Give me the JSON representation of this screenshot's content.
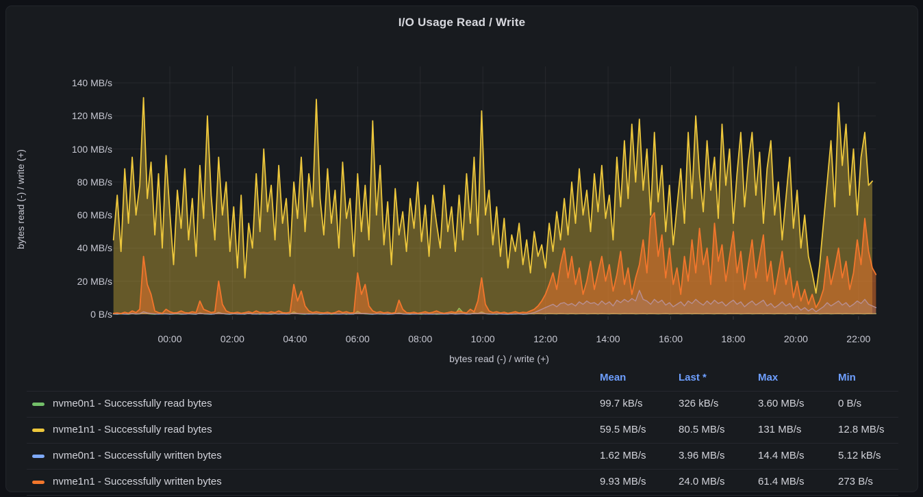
{
  "panel": {
    "title": "I/O Usage Read / Write"
  },
  "colors": {
    "page_background": "#0f1116",
    "panel_background": "#181b1f",
    "grid": "rgba(204,204,220,0.08)",
    "tick_text": "#c8c9d3",
    "legend_text": "#d2d3da",
    "legend_header_link": "#6e9fff",
    "series_green": "#73BF69",
    "series_yellow": "#EDC73C",
    "series_blue": "#7EA9F8",
    "series_orange": "#F2762C"
  },
  "chart_data": {
    "type": "area",
    "title": "I/O Usage Read / Write",
    "xlabel": "bytes read (-) / write (+)",
    "ylabel": "bytes read (-) / write (+)",
    "grid": true,
    "legend_position": "bottom-table",
    "unit": "MB/s",
    "ylim": [
      0,
      150
    ],
    "x_start_hours": -1.8,
    "x_step_hours": 0.12,
    "x_ticks": [
      {
        "hour": 0,
        "label": "00:00"
      },
      {
        "hour": 2,
        "label": "02:00"
      },
      {
        "hour": 4,
        "label": "04:00"
      },
      {
        "hour": 6,
        "label": "06:00"
      },
      {
        "hour": 8,
        "label": "08:00"
      },
      {
        "hour": 10,
        "label": "10:00"
      },
      {
        "hour": 12,
        "label": "12:00"
      },
      {
        "hour": 14,
        "label": "14:00"
      },
      {
        "hour": 16,
        "label": "16:00"
      },
      {
        "hour": 18,
        "label": "18:00"
      },
      {
        "hour": 20,
        "label": "20:00"
      },
      {
        "hour": 22,
        "label": "22:00"
      }
    ],
    "y_ticks": [
      {
        "value": 0,
        "label": "0 B/s"
      },
      {
        "value": 20,
        "label": "20 MB/s"
      },
      {
        "value": 40,
        "label": "40 MB/s"
      },
      {
        "value": 60,
        "label": "60 MB/s"
      },
      {
        "value": 80,
        "label": "80 MB/s"
      },
      {
        "value": 100,
        "label": "100 MB/s"
      },
      {
        "value": 120,
        "label": "120 MB/s"
      },
      {
        "value": 140,
        "label": "140 MB/s"
      }
    ],
    "series": [
      {
        "key": "nvme0n1-read",
        "name": "nvme0n1 - Successfully read bytes",
        "color": "#73BF69",
        "fill_opacity": 0.3,
        "line_width": 1.4,
        "values": [
          0.1,
          0,
          0.2,
          0.1,
          0,
          0.3,
          0.1,
          0.2,
          0.5,
          0.3,
          0.1,
          0,
          0.2,
          0.1,
          0.3,
          0,
          0.1,
          0.2,
          0,
          0.1,
          0.3,
          0.1,
          0,
          0.8,
          0.2,
          0.1,
          0,
          0.3,
          1.2,
          0.4,
          0.1,
          0,
          0.3,
          0.1,
          0.2,
          0,
          0.5,
          0.1,
          0.3,
          0,
          0.2,
          0.1,
          0,
          0.3,
          0.1,
          0.6,
          0.2,
          0.1,
          1.5,
          0.3,
          0.1,
          0,
          0.4,
          0.1,
          0.2,
          0,
          0.1,
          0.3,
          0,
          0.2,
          0.1,
          0.3,
          0,
          0.2,
          0.1,
          1.8,
          0.4,
          0.2,
          0.1,
          0,
          0.3,
          0.1,
          0.2,
          0,
          0.1,
          0.3,
          0.8,
          0.2,
          0.1,
          0,
          0.2,
          0.1,
          0,
          0.3,
          0.1,
          0.2,
          0,
          0.1,
          0.3,
          0.1,
          0.5,
          0.2,
          3.6,
          1.2,
          0.3,
          0.1,
          0.8,
          0.4,
          1.5,
          0.3,
          0.1,
          0.2,
          0,
          0.3,
          0.1,
          0,
          0.2,
          0.1,
          0.3,
          0,
          0.1,
          0.3,
          0.2,
          0.5,
          0.3,
          0.2,
          0.4,
          0.3,
          0.2,
          0.5,
          0.3,
          0.2,
          0.4,
          0.2,
          0.3,
          0.5,
          0.2,
          0.3,
          0.4,
          0.2,
          0.5,
          0.3,
          0.2,
          0.4,
          0.3,
          0.2,
          0.5,
          0.3,
          0.4,
          0.2,
          0.3,
          0.5,
          0.2,
          0.4,
          0.3,
          0.2,
          0.3,
          0.5,
          0.2,
          0.3,
          0.4,
          0.2,
          0.3,
          0.5,
          0.2,
          0.4,
          0.3,
          0.2,
          0.5,
          0.3,
          0.2,
          0.4,
          0.3,
          0.2,
          0.5,
          0.3,
          0.4,
          0.2,
          0.3,
          0.5,
          0.2,
          0.3,
          0.4,
          0.2,
          0.5,
          0.3,
          0.2,
          0.4,
          0.3,
          0.2,
          0.5,
          0.3,
          0.2,
          0.4,
          0.3,
          0.2,
          0.3,
          0.5,
          0.2,
          0.3,
          0.4,
          0.2,
          0.3,
          0.5,
          0.2,
          0.4,
          0.3,
          0.2,
          0.5,
          0.3,
          0.2,
          0.4,
          0.3,
          0.326
        ]
      },
      {
        "key": "nvme1n1-read",
        "name": "nvme1n1 - Successfully read bytes",
        "color": "#EDC73C",
        "fill_opacity": 0.36,
        "line_width": 1.8,
        "values": [
          45,
          72,
          38,
          88,
          55,
          95,
          60,
          78,
          131,
          70,
          92,
          48,
          85,
          40,
          96,
          62,
          30,
          75,
          52,
          88,
          45,
          70,
          35,
          90,
          58,
          120,
          72,
          45,
          95,
          60,
          80,
          38,
          65,
          28,
          72,
          22,
          55,
          40,
          85,
          50,
          100,
          62,
          78,
          45,
          90,
          55,
          70,
          35,
          80,
          58,
          95,
          50,
          85,
          65,
          130,
          70,
          48,
          88,
          55,
          75,
          40,
          92,
          58,
          70,
          35,
          85,
          50,
          78,
          45,
          117,
          60,
          90,
          42,
          68,
          30,
          76,
          48,
          62,
          38,
          70,
          52,
          80,
          44,
          66,
          35,
          72,
          55,
          40,
          78,
          50,
          65,
          38,
          72,
          45,
          85,
          55,
          95,
          48,
          123,
          60,
          75,
          42,
          65,
          35,
          58,
          28,
          48,
          38,
          55,
          30,
          45,
          25,
          50,
          35,
          42,
          28,
          55,
          38,
          62,
          45,
          70,
          48,
          80,
          55,
          88,
          60,
          75,
          50,
          85,
          62,
          90,
          58,
          72,
          45,
          95,
          65,
          105,
          70,
          115,
          80,
          118,
          75,
          100,
          60,
          110,
          68,
          90,
          50,
          78,
          42,
          65,
          88,
          55,
          110,
          70,
          120,
          85,
          62,
          105,
          75,
          95,
          58,
          115,
          78,
          100,
          55,
          85,
          110,
          65,
          92,
          110,
          72,
          98,
          55,
          88,
          105,
          60,
          80,
          45,
          70,
          95,
          52,
          75,
          40,
          60,
          35,
          25,
          12.8,
          30,
          55,
          80,
          105,
          65,
          128,
          90,
          115,
          72,
          100,
          60,
          95,
          110,
          78,
          80.5
        ]
      },
      {
        "key": "nvme0n1-write",
        "name": "nvme0n1 - Successfully written bytes",
        "color": "#7EA9F8",
        "fill_opacity": 0.25,
        "line_width": 1.4,
        "values": [
          0.2,
          0.1,
          0.3,
          0.1,
          0.2,
          0.4,
          0.2,
          0.3,
          1.5,
          0.8,
          0.4,
          0.2,
          0.1,
          0.3,
          0.2,
          0.1,
          0.2,
          0.4,
          0.2,
          0.1,
          0.3,
          0.2,
          0.1,
          0.5,
          0.3,
          0.2,
          0.1,
          0.2,
          0.8,
          0.4,
          0.2,
          0.1,
          0.3,
          0.2,
          0.1,
          0.2,
          0.4,
          0.2,
          0.1,
          0.3,
          0.2,
          0.1,
          0.2,
          0.3,
          0.1,
          0.2,
          0.1,
          0.3,
          0.6,
          0.4,
          0.3,
          0.2,
          0.1,
          0.2,
          0.3,
          0.1,
          0.2,
          0.1,
          0.3,
          0.2,
          0.1,
          0.2,
          0.3,
          0.1,
          0.2,
          0.7,
          0.4,
          0.5,
          0.2,
          0.1,
          0.2,
          0.3,
          0.1,
          0.2,
          0.1,
          0.3,
          0.4,
          0.2,
          0.1,
          0.2,
          0.1,
          0.2,
          0.3,
          0.1,
          0.2,
          0.1,
          0.3,
          0.2,
          0.1,
          0.2,
          0.3,
          0.1,
          0.2,
          0.3,
          0.1,
          0.2,
          0.4,
          0.5,
          0.8,
          0.3,
          0.2,
          0.1,
          0.3,
          0.2,
          0.1,
          0.2,
          0.1,
          0.3,
          0.2,
          0.1,
          0.2,
          0.5,
          1,
          2,
          3,
          4,
          5,
          6,
          4.5,
          6.5,
          7,
          5.5,
          6.5,
          5,
          7.5,
          6,
          8,
          6.5,
          7,
          5.5,
          8,
          6,
          7.5,
          5,
          8.5,
          7,
          9,
          7.5,
          9.5,
          8,
          14.4,
          9,
          8,
          6,
          9,
          7,
          8.5,
          5.5,
          7,
          4.5,
          6,
          7.5,
          5,
          8,
          6.5,
          9,
          7,
          5.5,
          8,
          6,
          8.5,
          6.5,
          7.5,
          5,
          7,
          8.5,
          6,
          7.5,
          4.5,
          6.5,
          8,
          5.5,
          7,
          8.5,
          5,
          6.5,
          4,
          5.5,
          7.5,
          5,
          6.5,
          3.5,
          5,
          2.5,
          4,
          2,
          3.5,
          1.5,
          3,
          4.5,
          7,
          5,
          6.5,
          8,
          5.5,
          7,
          4.5,
          6,
          8,
          6.5,
          9,
          6,
          5,
          3.96
        ]
      },
      {
        "key": "nvme1n1-write",
        "name": "nvme1n1 - Successfully written bytes",
        "color": "#F2762C",
        "fill_opacity": 0.5,
        "line_width": 1.8,
        "values": [
          0.5,
          0.8,
          0.4,
          1.2,
          0.6,
          2,
          1,
          3,
          35,
          18,
          12,
          2,
          1,
          0.6,
          3,
          1.5,
          0.8,
          1,
          2,
          1,
          0.8,
          1.5,
          1,
          8,
          3,
          2,
          1,
          1.5,
          20,
          6,
          2,
          1,
          0.8,
          1.2,
          0.6,
          1,
          1.5,
          0.8,
          2,
          1,
          1.2,
          0.8,
          1.5,
          1,
          2,
          1,
          0.8,
          1.2,
          18,
          8,
          14,
          5,
          2,
          1,
          1.5,
          1,
          0.8,
          1.2,
          0.6,
          1,
          2,
          1,
          1.5,
          0.8,
          1,
          25,
          12,
          18,
          5,
          2,
          1,
          1.5,
          0.8,
          1.2,
          0.6,
          1,
          8.5,
          3,
          1,
          0.8,
          1.2,
          0.6,
          1,
          1.5,
          0.8,
          1.2,
          2,
          1,
          0.6,
          1,
          1.5,
          1,
          2,
          1.2,
          0.8,
          3,
          1.5,
          8,
          22,
          6,
          2,
          1,
          1.5,
          0.8,
          1.2,
          0.6,
          1,
          1.5,
          0.8,
          1.2,
          1,
          2,
          3,
          5,
          8,
          12,
          18,
          25,
          15,
          30,
          40,
          22,
          35,
          18,
          28,
          12,
          20,
          32,
          15,
          25,
          35,
          20,
          30,
          14,
          24,
          38,
          18,
          28,
          12,
          22,
          30,
          45,
          25,
          58,
          61.4,
          35,
          48,
          22,
          40,
          18,
          28,
          12,
          35,
          20,
          45,
          25,
          52,
          30,
          40,
          18,
          55,
          32,
          42,
          20,
          35,
          50,
          25,
          38,
          15,
          30,
          45,
          22,
          35,
          48,
          20,
          32,
          12,
          25,
          38,
          18,
          28,
          10,
          20,
          8,
          15,
          6,
          12,
          4,
          8,
          15,
          35,
          18,
          28,
          40,
          22,
          32,
          15,
          25,
          45,
          30,
          58,
          38,
          28,
          24
        ]
      }
    ]
  },
  "legend": {
    "headers": [
      {
        "key": "mean",
        "label": "Mean"
      },
      {
        "key": "last",
        "label": "Last *"
      },
      {
        "key": "max",
        "label": "Max"
      },
      {
        "key": "min",
        "label": "Min"
      }
    ],
    "rows": [
      {
        "key": "nvme0n1-read",
        "label": "nvme0n1 - Successfully read bytes",
        "color": "#73BF69",
        "mean": "99.7 kB/s",
        "last": "326 kB/s",
        "max": "3.60 MB/s",
        "min": "0 B/s"
      },
      {
        "key": "nvme1n1-read",
        "label": "nvme1n1 - Successfully read bytes",
        "color": "#EDC73C",
        "mean": "59.5 MB/s",
        "last": "80.5 MB/s",
        "max": "131 MB/s",
        "min": "12.8 MB/s"
      },
      {
        "key": "nvme0n1-write",
        "label": "nvme0n1 - Successfully written bytes",
        "color": "#7EA9F8",
        "mean": "1.62 MB/s",
        "last": "3.96 MB/s",
        "max": "14.4 MB/s",
        "min": "5.12 kB/s"
      },
      {
        "key": "nvme1n1-write",
        "label": "nvme1n1 - Successfully written bytes",
        "color": "#F2762C",
        "mean": "9.93 MB/s",
        "last": "24.0 MB/s",
        "max": "61.4 MB/s",
        "min": "273 B/s"
      }
    ]
  }
}
